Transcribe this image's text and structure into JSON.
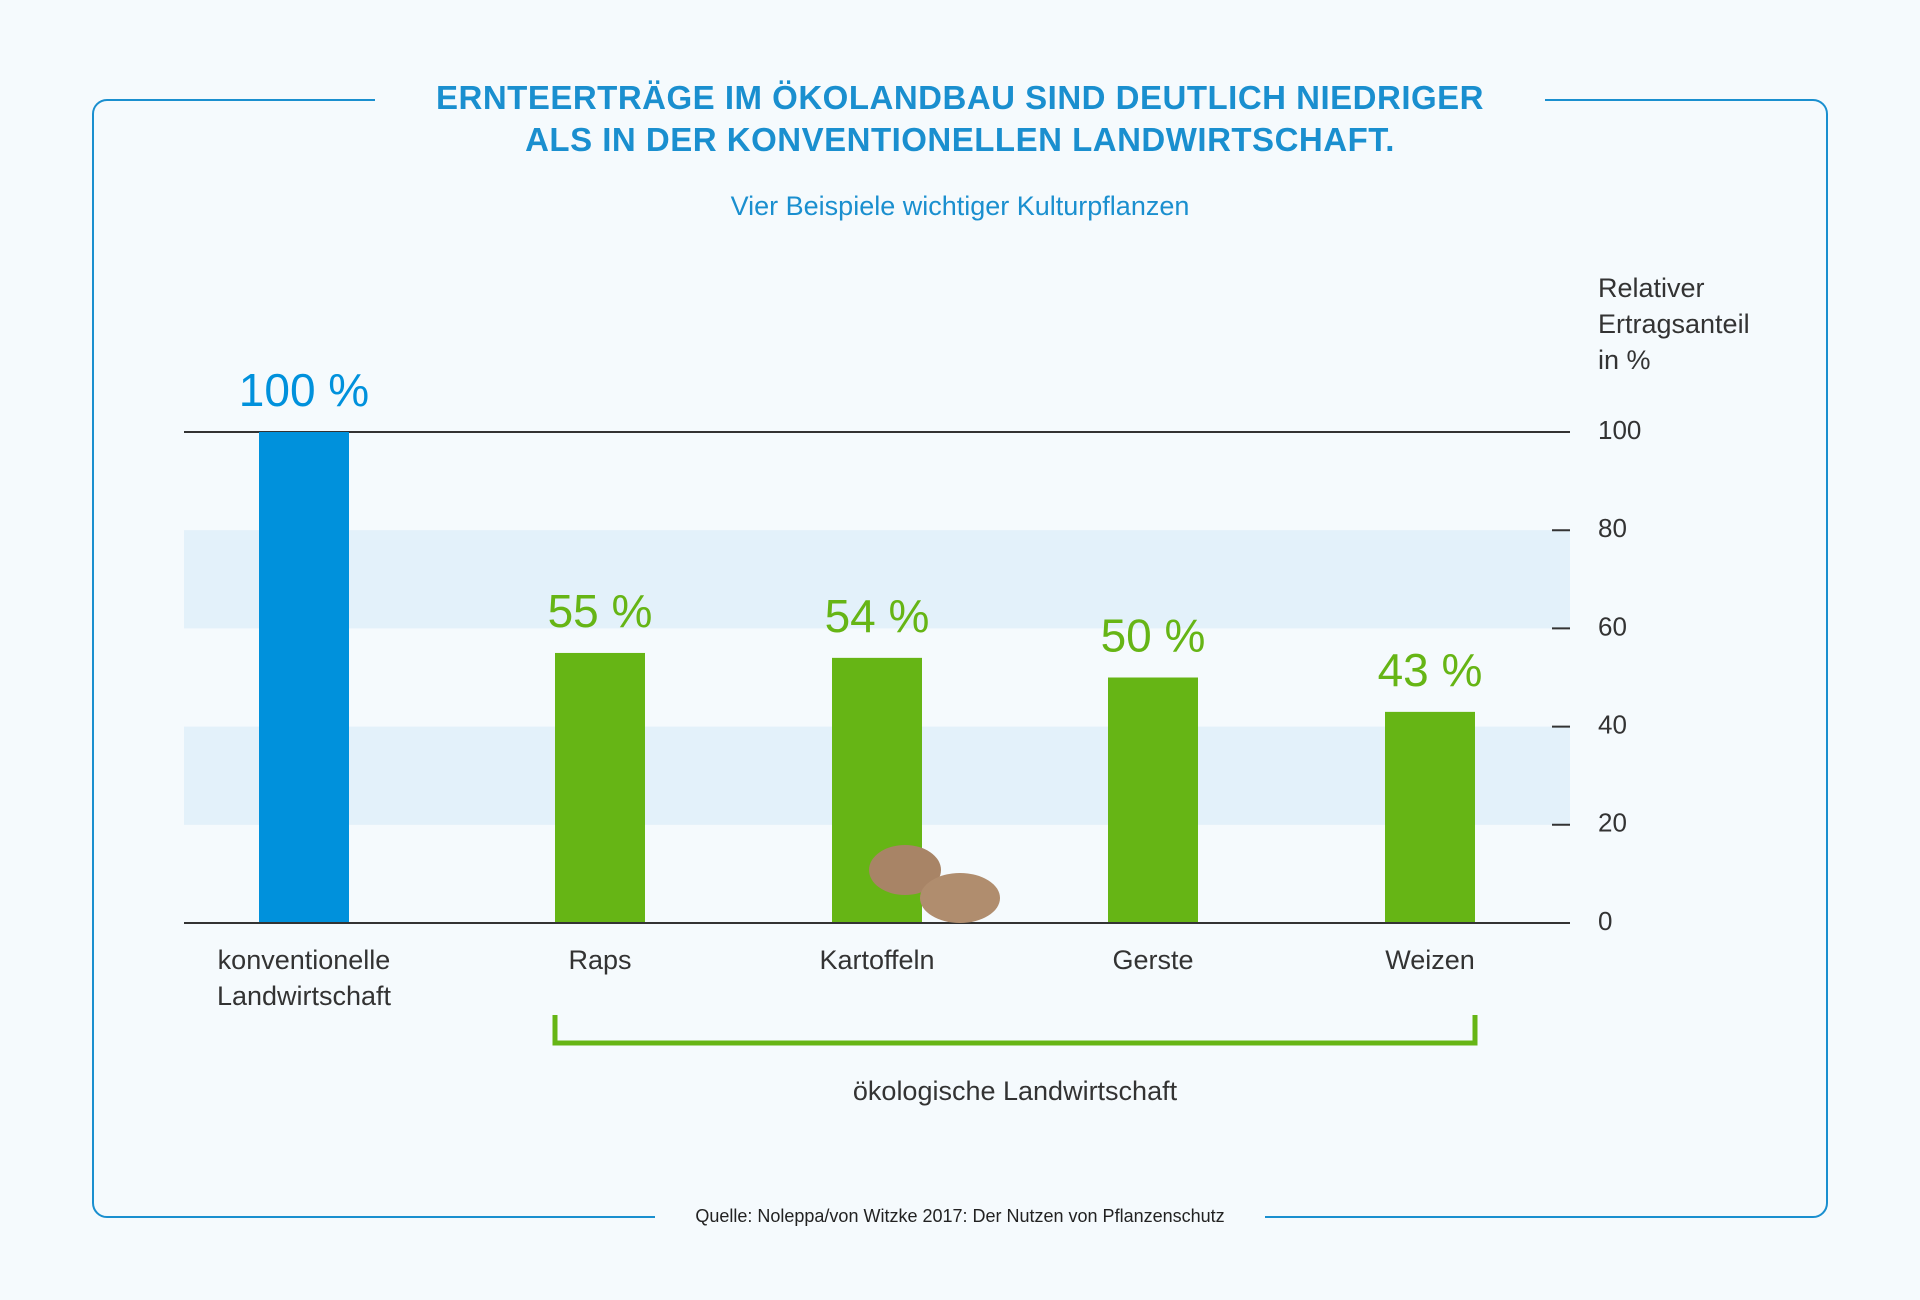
{
  "chart_data": {
    "type": "bar",
    "title": "ERNTEERTRÄGE IM ÖKOLANDBAU SIND DEUTLICH NIEDRIGER\nALS IN DER KONVENTIONELLEN LANDWIRTSCHAFT.",
    "subtitle": "Vier Beispiele wichtiger Kulturpflanzen",
    "y_axis_label": "Relativer\nErtragsanteil\nin %",
    "categories": [
      "konventionelle\nLandwirtschaft",
      "Raps",
      "Kartoffeln",
      "Gerste",
      "Weizen"
    ],
    "values": [
      100,
      55,
      54,
      50,
      43
    ],
    "value_labels": [
      "100 %",
      "55 %",
      "54 %",
      "50 %",
      "43 %"
    ],
    "colors": [
      "#0091dc",
      "#66b515",
      "#66b515",
      "#66b515",
      "#66b515"
    ],
    "ylim": [
      0,
      100
    ],
    "yticks": [
      0,
      20,
      40,
      60,
      80,
      100
    ],
    "group_label": "ökologische Landwirtschaft",
    "source": "Quelle: Noleppa/von Witzke 2017: Der Nutzen von Pflanzenschutz"
  }
}
